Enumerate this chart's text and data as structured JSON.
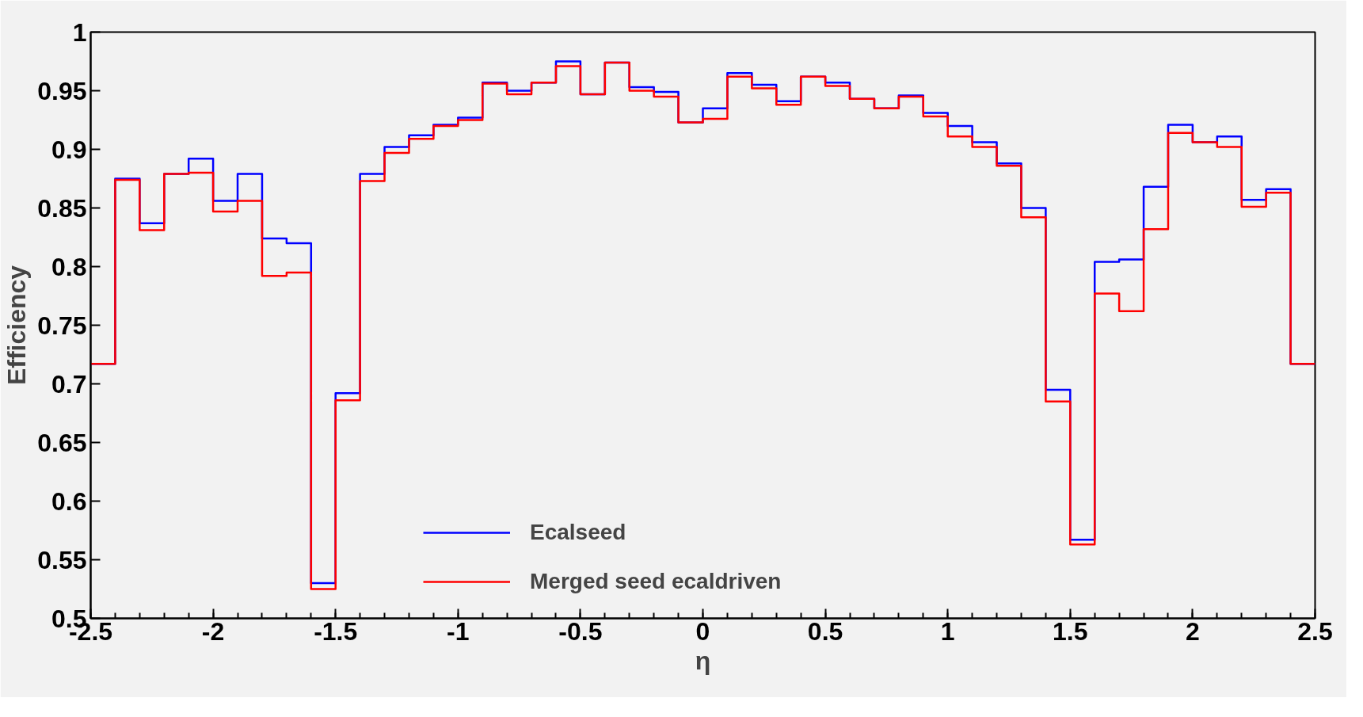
{
  "chart_data": {
    "type": "histogram",
    "xlabel": "η",
    "ylabel": "Efficiency",
    "bins": [
      -2.5,
      -2.4,
      -2.3,
      -2.2,
      -2.1,
      -2.0,
      -1.9,
      -1.8,
      -1.7,
      -1.6,
      -1.5,
      -1.4,
      -1.3,
      -1.2,
      -1.1,
      -1.0,
      -0.9,
      -0.8,
      -0.7,
      -0.6,
      -0.5,
      -0.4,
      -0.3,
      -0.2,
      -0.1,
      0.0,
      0.1,
      0.2,
      0.3,
      0.4,
      0.5,
      0.6,
      0.7,
      0.8,
      0.9,
      1.0,
      1.1,
      1.2,
      1.3,
      1.4,
      1.5,
      1.6,
      1.7,
      1.8,
      1.9,
      2.0,
      2.1,
      2.2,
      2.3,
      2.4,
      2.5
    ],
    "series": [
      {
        "name": "Ecalseed",
        "color": "#0000ff",
        "values": [
          0.717,
          0.875,
          0.837,
          0.879,
          0.892,
          0.856,
          0.879,
          0.824,
          0.82,
          0.53,
          0.692,
          0.879,
          0.902,
          0.912,
          0.921,
          0.927,
          0.957,
          0.95,
          0.957,
          0.975,
          0.947,
          0.974,
          0.953,
          0.949,
          0.923,
          0.935,
          0.965,
          0.955,
          0.941,
          0.962,
          0.957,
          0.943,
          0.935,
          0.946,
          0.931,
          0.92,
          0.906,
          0.888,
          0.85,
          0.695,
          0.567,
          0.804,
          0.806,
          0.868,
          0.921,
          0.906,
          0.911,
          0.857,
          0.866,
          0.717
        ]
      },
      {
        "name": "Merged seed ecaldriven",
        "color": "#ff0000",
        "values": [
          0.717,
          0.874,
          0.831,
          0.879,
          0.88,
          0.847,
          0.856,
          0.792,
          0.795,
          0.525,
          0.686,
          0.873,
          0.897,
          0.909,
          0.92,
          0.925,
          0.956,
          0.947,
          0.957,
          0.971,
          0.947,
          0.974,
          0.95,
          0.945,
          0.923,
          0.926,
          0.962,
          0.952,
          0.938,
          0.962,
          0.954,
          0.943,
          0.935,
          0.945,
          0.928,
          0.911,
          0.902,
          0.886,
          0.842,
          0.685,
          0.563,
          0.777,
          0.762,
          0.832,
          0.914,
          0.906,
          0.902,
          0.851,
          0.863,
          0.717
        ]
      }
    ],
    "xlim": [
      -2.5,
      2.5
    ],
    "xticks": [
      -2.5,
      -2,
      -1.5,
      -1,
      -0.5,
      0,
      0.5,
      1,
      1.5,
      2,
      2.5
    ],
    "ylim": [
      0.5,
      1
    ],
    "yticks": [
      0.5,
      0.55,
      0.6,
      0.65,
      0.7,
      0.75,
      0.8,
      0.85,
      0.9,
      0.95,
      1
    ],
    "grid": false,
    "legend": "bottom"
  }
}
